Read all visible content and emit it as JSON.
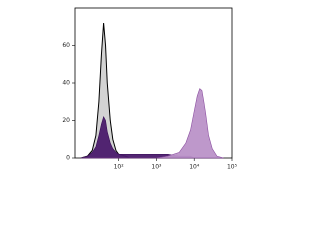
{
  "chart_data": {
    "type": "area",
    "xscale": "log",
    "x": [
      10,
      15,
      20,
      25,
      30,
      35,
      40,
      45,
      50,
      60,
      70,
      85,
      100,
      150,
      200,
      300,
      500,
      1000,
      2000,
      4000,
      6000,
      8000,
      10000,
      12000,
      14000,
      16000,
      18000,
      20000,
      24000,
      30000,
      40000,
      60000
    ],
    "series": [
      {
        "color": "#d3d3d3",
        "stroke": "#000000",
        "values": [
          0,
          1,
          4,
          12,
          30,
          55,
          72,
          60,
          40,
          20,
          10,
          4,
          2,
          1,
          0,
          0,
          0,
          0,
          0,
          0,
          0,
          0,
          0,
          0,
          0,
          0,
          0,
          0,
          0,
          0,
          0,
          0
        ]
      },
      {
        "color": "#4a1a6c",
        "stroke": "#3a0f58",
        "values": [
          0,
          1,
          3,
          6,
          12,
          18,
          22,
          20,
          14,
          8,
          5,
          3,
          2,
          2,
          2,
          2,
          2,
          2,
          2,
          1,
          1,
          1,
          0,
          0,
          0,
          0,
          0,
          0,
          0,
          0,
          0,
          0
        ]
      },
      {
        "color": "#bb92c8",
        "stroke": "#8b4fa0",
        "values": [
          0,
          0,
          0,
          0,
          0,
          0,
          0,
          0,
          0,
          0,
          0,
          0,
          0,
          0,
          0,
          0,
          0,
          0,
          1,
          3,
          8,
          15,
          25,
          33,
          37,
          36,
          30,
          24,
          12,
          5,
          1,
          0
        ]
      }
    ],
    "xlim": [
      7,
      100000
    ],
    "xticks": [
      {
        "value": 100,
        "label": "10²"
      },
      {
        "value": 1000,
        "label": "10³"
      },
      {
        "value": 10000,
        "label": "10⁴"
      },
      {
        "value": 100000,
        "label": "10⁵"
      }
    ],
    "ylim": [
      0,
      80
    ],
    "yticks": [
      0,
      20,
      40,
      60
    ]
  }
}
